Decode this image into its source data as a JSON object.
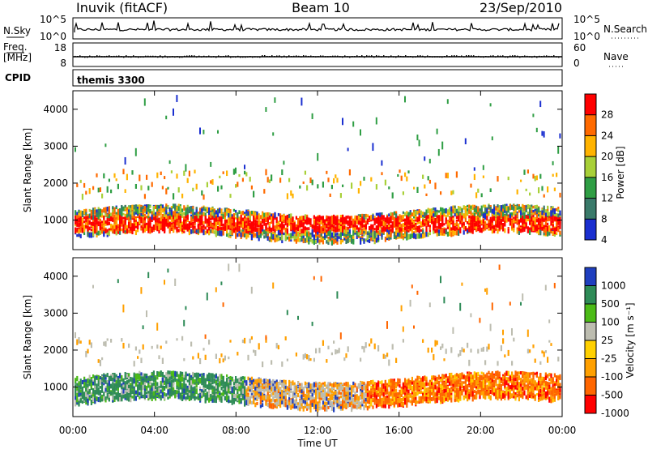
{
  "header": {
    "station": "Inuvik (fitACF)",
    "beam": "Beam 10",
    "date": "23/Sep/2010"
  },
  "noise_panel": {
    "left_label": "N.Sky",
    "left_ticks": [
      "10^5",
      "10^0"
    ],
    "right_ticks": [
      "10^5",
      "10^0"
    ],
    "right_label": "N.Search"
  },
  "freq_panel": {
    "left_label_top": "Freq.",
    "left_label_unit": "[MHz]",
    "left_ticks": [
      "18",
      "8"
    ],
    "right_ticks": [
      "60",
      "0"
    ],
    "right_label": "Nave"
  },
  "cpid_panel": {
    "label": "CPID",
    "program": "themis 3300"
  },
  "chart_data": [
    {
      "type": "heatmap",
      "title": "",
      "ylabel": "Slant Range [km]",
      "yticks": [
        "1000",
        "2000",
        "3000",
        "4000"
      ],
      "ylim": [
        200,
        4500
      ],
      "colorbar_label": "Power [dB]",
      "colorbar_ticks": [
        "28",
        "24",
        "20",
        "16",
        "12",
        "8",
        "4"
      ],
      "colorbar_colors": [
        "#ff0000",
        "#ff6a00",
        "#ffb300",
        "#a8d038",
        "#2f9e44",
        "#3a7a6a",
        "#1a2fd0"
      ]
    },
    {
      "type": "heatmap",
      "title": "",
      "ylabel": "Slant Range [km]",
      "yticks": [
        "1000",
        "2000",
        "3000",
        "4000"
      ],
      "ylim": [
        200,
        4500
      ],
      "colorbar_label": "Velocity [m s⁻¹]",
      "colorbar_ticks": [
        "1000",
        "500",
        "100",
        "25",
        "-25",
        "-100",
        "-500",
        "-1000"
      ],
      "colorbar_colors": [
        "#1f3fbf",
        "#2e8b57",
        "#4cbb17",
        "#bdbdb0",
        "#ffd000",
        "#ffa000",
        "#ff6600",
        "#ff0000"
      ]
    }
  ],
  "xaxis": {
    "ticks": [
      "00:00",
      "04:00",
      "08:00",
      "12:00",
      "16:00",
      "20:00",
      "00:00"
    ],
    "label": "Time UT"
  },
  "colors": {
    "frame": "#000000"
  }
}
